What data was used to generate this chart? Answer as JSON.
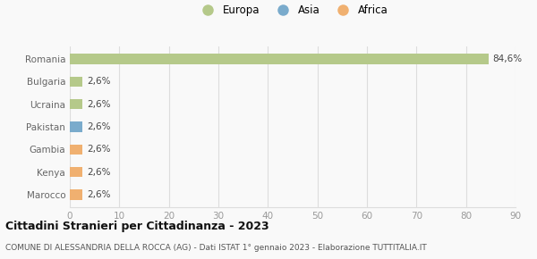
{
  "categories": [
    "Marocco",
    "Kenya",
    "Gambia",
    "Pakistan",
    "Ucraina",
    "Bulgaria",
    "Romania"
  ],
  "values": [
    2.6,
    2.6,
    2.6,
    2.6,
    2.6,
    2.6,
    84.6
  ],
  "colors": [
    "#f0b070",
    "#f0b070",
    "#f0b070",
    "#7aabcc",
    "#b5c98a",
    "#b5c98a",
    "#b5c98a"
  ],
  "bar_labels": [
    "2,6%",
    "2,6%",
    "2,6%",
    "2,6%",
    "2,6%",
    "2,6%",
    "84,6%"
  ],
  "legend": [
    {
      "label": "Europa",
      "color": "#b5c98a"
    },
    {
      "label": "Asia",
      "color": "#7aabcc"
    },
    {
      "label": "Africa",
      "color": "#f0b070"
    }
  ],
  "xlim": [
    0,
    90
  ],
  "xticks": [
    0,
    10,
    20,
    30,
    40,
    50,
    60,
    70,
    80,
    90
  ],
  "title": "Cittadini Stranieri per Cittadinanza - 2023",
  "subtitle": "COMUNE DI ALESSANDRIA DELLA ROCCA (AG) - Dati ISTAT 1° gennaio 2023 - Elaborazione TUTTITALIA.IT",
  "bg_color": "#f9f9f9",
  "grid_color": "#dddddd",
  "bar_height": 0.45
}
